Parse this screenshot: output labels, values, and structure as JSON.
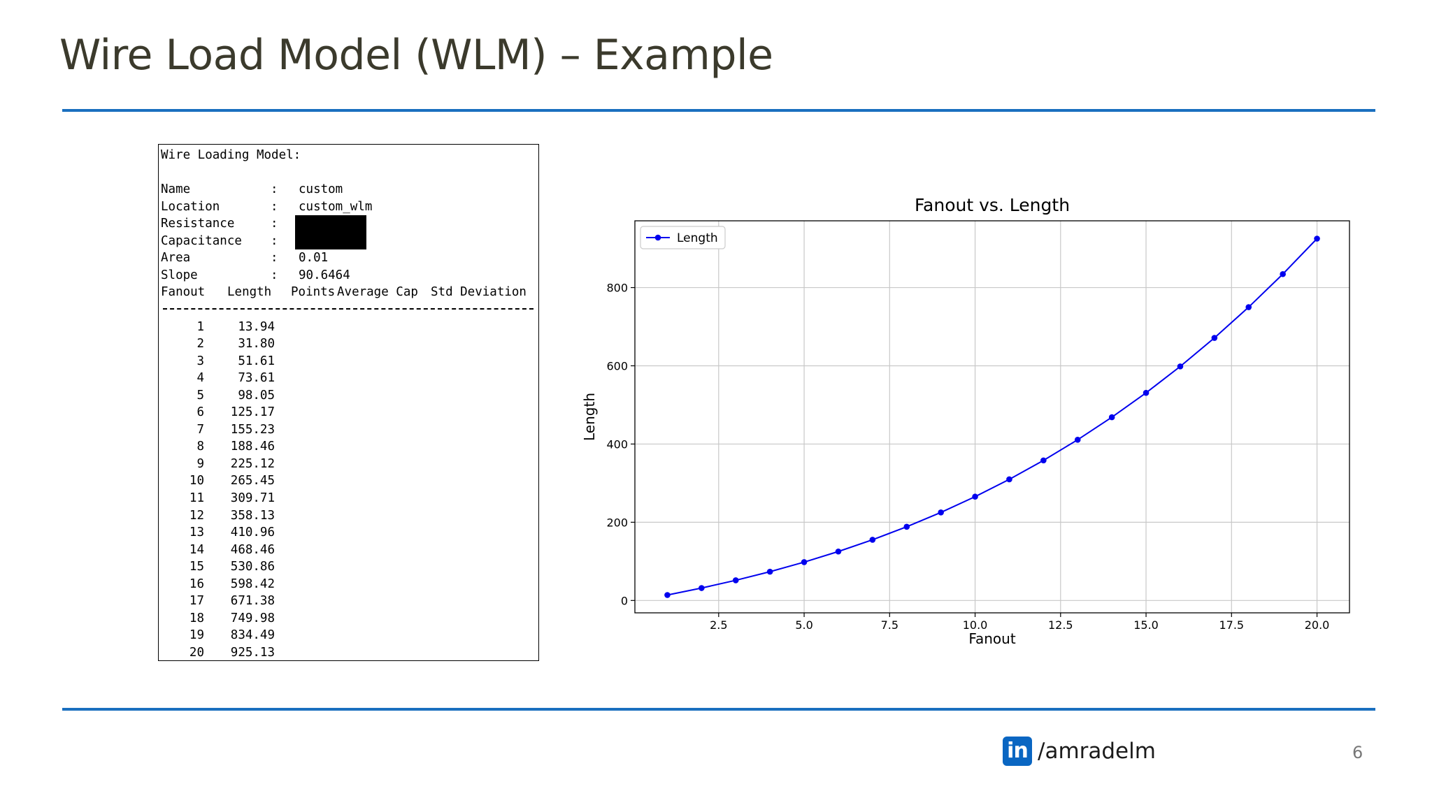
{
  "slide": {
    "title": "Wire Load Model (WLM) – Example",
    "page_number": "6",
    "brand": {
      "logo_text": "in",
      "handle": "/amradelm",
      "icon": "linkedin-icon"
    }
  },
  "wlm_report": {
    "heading": "Wire Loading Model:",
    "fields": [
      {
        "label": "Name",
        "sep": ":",
        "value": "custom"
      },
      {
        "label": "Location",
        "sep": ":",
        "value": "custom_wlm"
      },
      {
        "label": "Resistance",
        "sep": ":",
        "value": ""
      },
      {
        "label": "Capacitance",
        "sep": ":",
        "value": ""
      },
      {
        "label": "Area",
        "sep": ":",
        "value": "0.01"
      },
      {
        "label": "Slope",
        "sep": ":",
        "value": "90.6464"
      }
    ],
    "columns": [
      "Fanout",
      "Length",
      "Points",
      "Average Cap",
      "Std Deviation"
    ],
    "rows": [
      {
        "fanout": "1",
        "length": "13.94"
      },
      {
        "fanout": "2",
        "length": "31.80"
      },
      {
        "fanout": "3",
        "length": "51.61"
      },
      {
        "fanout": "4",
        "length": "73.61"
      },
      {
        "fanout": "5",
        "length": "98.05"
      },
      {
        "fanout": "6",
        "length": "125.17"
      },
      {
        "fanout": "7",
        "length": "155.23"
      },
      {
        "fanout": "8",
        "length": "188.46"
      },
      {
        "fanout": "9",
        "length": "225.12"
      },
      {
        "fanout": "10",
        "length": "265.45"
      },
      {
        "fanout": "11",
        "length": "309.71"
      },
      {
        "fanout": "12",
        "length": "358.13"
      },
      {
        "fanout": "13",
        "length": "410.96"
      },
      {
        "fanout": "14",
        "length": "468.46"
      },
      {
        "fanout": "15",
        "length": "530.86"
      },
      {
        "fanout": "16",
        "length": "598.42"
      },
      {
        "fanout": "17",
        "length": "671.38"
      },
      {
        "fanout": "18",
        "length": "749.98"
      },
      {
        "fanout": "19",
        "length": "834.49"
      },
      {
        "fanout": "20",
        "length": "925.13"
      }
    ]
  },
  "chart_data": {
    "type": "line",
    "title": "Fanout vs. Length",
    "xlabel": "Fanout",
    "ylabel": "Length",
    "x": [
      1,
      2,
      3,
      4,
      5,
      6,
      7,
      8,
      9,
      10,
      11,
      12,
      13,
      14,
      15,
      16,
      17,
      18,
      19,
      20
    ],
    "series": [
      {
        "name": "Length",
        "color": "#0000ee",
        "marker": "circle",
        "values": [
          13.94,
          31.8,
          51.61,
          73.61,
          98.05,
          125.17,
          155.23,
          188.46,
          225.12,
          265.45,
          309.71,
          358.13,
          410.96,
          468.46,
          530.86,
          598.42,
          671.38,
          749.98,
          834.49,
          925.13
        ]
      }
    ],
    "xlim": [
      0.05,
      20.95
    ],
    "ylim": [
      -31.6,
      970.7
    ],
    "xticks": [
      2.5,
      5.0,
      7.5,
      10.0,
      12.5,
      15.0,
      17.5,
      20.0
    ],
    "xtick_labels": [
      "2.5",
      "5.0",
      "7.5",
      "10.0",
      "12.5",
      "15.0",
      "17.5",
      "20.0"
    ],
    "yticks": [
      0,
      200,
      400,
      600,
      800
    ],
    "ytick_labels": [
      "0",
      "200",
      "400",
      "600",
      "800"
    ],
    "grid": true,
    "legend": "upper-left"
  }
}
